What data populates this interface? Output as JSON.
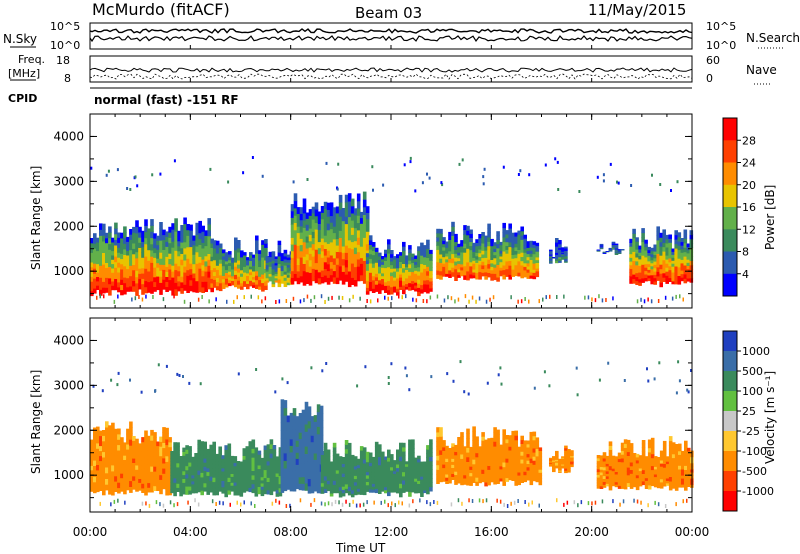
{
  "header": {
    "station": "McMurdo (fitACF)",
    "beam": "Beam 03",
    "date": "11/May/2015"
  },
  "status_panels": {
    "nsky_label": "N.Sky",
    "nsky_ticks": [
      "10^5",
      "10^0"
    ],
    "nsearch_label": "N.Search",
    "nsearch_ticks": [
      "10^5",
      "10^0"
    ],
    "freq_label_line1": "Freq.",
    "freq_label_line2": "[MHz]",
    "freq_ticks": [
      "18",
      "8"
    ],
    "nave_label": "Nave",
    "nave_ticks": [
      "60",
      "0"
    ],
    "cpid_label": "CPID",
    "cpid_value": "normal (fast) -151 RF"
  },
  "chart_data": [
    {
      "type": "heatmap",
      "name": "Power",
      "ylabel": "Slant Range [km]",
      "xlabel": "",
      "ylim": [
        180,
        4500
      ],
      "yticks": [
        "4000",
        "3000",
        "2000",
        "1000"
      ],
      "colorbar_label": "Power [dB]",
      "colorbar_ticks": [
        "28",
        "24",
        "20",
        "16",
        "12",
        "8",
        "4"
      ],
      "colors": [
        "#0000ff",
        "#2c5bb0",
        "#3a8a5c",
        "#62b04a",
        "#e8c400",
        "#ff8c00",
        "#ff4000",
        "#ff0000"
      ],
      "echo_regions": [
        {
          "t_start": 0.0,
          "t_end": 4.9,
          "r_low": 500,
          "r_high": 2200,
          "peak_dB": 30
        },
        {
          "t_start": 4.9,
          "t_end": 7.0,
          "r_low": 600,
          "r_high": 1800,
          "peak_dB": 24
        },
        {
          "t_start": 7.0,
          "t_end": 8.0,
          "r_low": 700,
          "r_high": 1700,
          "peak_dB": 16
        },
        {
          "t_start": 8.0,
          "t_end": 11.0,
          "r_low": 700,
          "r_high": 2800,
          "peak_dB": 28
        },
        {
          "t_start": 11.0,
          "t_end": 13.6,
          "r_low": 500,
          "r_high": 1800,
          "peak_dB": 30
        },
        {
          "t_start": 13.8,
          "t_end": 17.8,
          "r_low": 800,
          "r_high": 2100,
          "peak_dB": 24
        },
        {
          "t_start": 18.3,
          "t_end": 19.0,
          "r_low": 1200,
          "r_high": 1800,
          "peak_dB": 8
        },
        {
          "t_start": 20.2,
          "t_end": 21.2,
          "r_low": 1400,
          "r_high": 1800,
          "peak_dB": 8
        },
        {
          "t_start": 21.5,
          "t_end": 24.0,
          "r_low": 700,
          "r_high": 2000,
          "peak_dB": 28
        }
      ]
    },
    {
      "type": "heatmap",
      "name": "Velocity",
      "ylabel": "Slant Range [km]",
      "xlabel": "Time UT",
      "ylim": [
        180,
        4500
      ],
      "yticks": [
        "4000",
        "3000",
        "2000",
        "1000"
      ],
      "xticks": [
        "00:00",
        "04:00",
        "08:00",
        "12:00",
        "16:00",
        "20:00",
        "00:00"
      ],
      "colorbar_label": "Velocity [m s⁻¹]",
      "colorbar_ticks": [
        "1000",
        "500",
        "100",
        "25",
        "-25",
        "-100",
        "-500",
        "-1000"
      ],
      "colors": [
        "#2040c0",
        "#3a6ea8",
        "#3a8a5c",
        "#62c040",
        "#c8c8c8",
        "#ffc830",
        "#ff8c00",
        "#ff4000",
        "#ff0000"
      ],
      "echo_regions": [
        {
          "t_start": 0.0,
          "t_end": 3.2,
          "r_low": 600,
          "r_high": 2200,
          "velocity": -300
        },
        {
          "t_start": 3.2,
          "t_end": 7.6,
          "r_low": 550,
          "r_high": 1800,
          "velocity": 150
        },
        {
          "t_start": 7.6,
          "t_end": 9.2,
          "r_low": 600,
          "r_high": 2800,
          "velocity": 600
        },
        {
          "t_start": 9.2,
          "t_end": 13.6,
          "r_low": 550,
          "r_high": 1800,
          "velocity": 200
        },
        {
          "t_start": 13.8,
          "t_end": 18.0,
          "r_low": 800,
          "r_high": 2100,
          "velocity": -300
        },
        {
          "t_start": 18.3,
          "t_end": 19.2,
          "r_low": 1100,
          "r_high": 1800,
          "velocity": -200
        },
        {
          "t_start": 20.2,
          "t_end": 24.0,
          "r_low": 700,
          "r_high": 1900,
          "velocity": -300
        }
      ]
    }
  ]
}
